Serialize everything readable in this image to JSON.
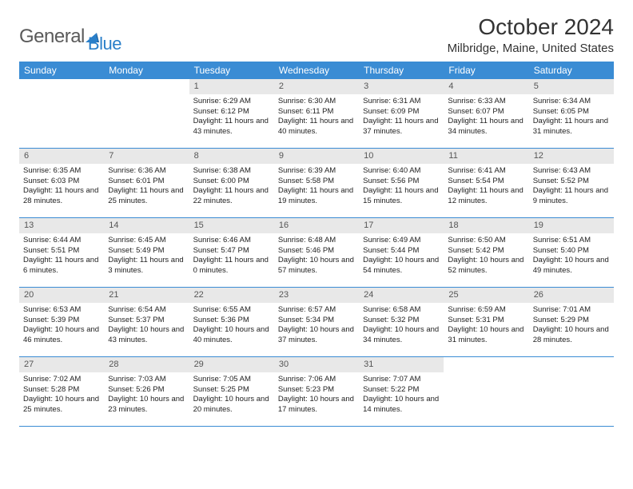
{
  "logo": {
    "text1": "General",
    "text2": "Blue"
  },
  "title": "October 2024",
  "location": "Milbridge, Maine, United States",
  "header_bg": "#3a8cd4",
  "daynum_bg": "#e8e8e8",
  "border_color": "#3a8cd4",
  "day_names": [
    "Sunday",
    "Monday",
    "Tuesday",
    "Wednesday",
    "Thursday",
    "Friday",
    "Saturday"
  ],
  "weeks": [
    [
      null,
      null,
      {
        "n": "1",
        "sr": "Sunrise: 6:29 AM",
        "ss": "Sunset: 6:12 PM",
        "dl": "Daylight: 11 hours and 43 minutes."
      },
      {
        "n": "2",
        "sr": "Sunrise: 6:30 AM",
        "ss": "Sunset: 6:11 PM",
        "dl": "Daylight: 11 hours and 40 minutes."
      },
      {
        "n": "3",
        "sr": "Sunrise: 6:31 AM",
        "ss": "Sunset: 6:09 PM",
        "dl": "Daylight: 11 hours and 37 minutes."
      },
      {
        "n": "4",
        "sr": "Sunrise: 6:33 AM",
        "ss": "Sunset: 6:07 PM",
        "dl": "Daylight: 11 hours and 34 minutes."
      },
      {
        "n": "5",
        "sr": "Sunrise: 6:34 AM",
        "ss": "Sunset: 6:05 PM",
        "dl": "Daylight: 11 hours and 31 minutes."
      }
    ],
    [
      {
        "n": "6",
        "sr": "Sunrise: 6:35 AM",
        "ss": "Sunset: 6:03 PM",
        "dl": "Daylight: 11 hours and 28 minutes."
      },
      {
        "n": "7",
        "sr": "Sunrise: 6:36 AM",
        "ss": "Sunset: 6:01 PM",
        "dl": "Daylight: 11 hours and 25 minutes."
      },
      {
        "n": "8",
        "sr": "Sunrise: 6:38 AM",
        "ss": "Sunset: 6:00 PM",
        "dl": "Daylight: 11 hours and 22 minutes."
      },
      {
        "n": "9",
        "sr": "Sunrise: 6:39 AM",
        "ss": "Sunset: 5:58 PM",
        "dl": "Daylight: 11 hours and 19 minutes."
      },
      {
        "n": "10",
        "sr": "Sunrise: 6:40 AM",
        "ss": "Sunset: 5:56 PM",
        "dl": "Daylight: 11 hours and 15 minutes."
      },
      {
        "n": "11",
        "sr": "Sunrise: 6:41 AM",
        "ss": "Sunset: 5:54 PM",
        "dl": "Daylight: 11 hours and 12 minutes."
      },
      {
        "n": "12",
        "sr": "Sunrise: 6:43 AM",
        "ss": "Sunset: 5:52 PM",
        "dl": "Daylight: 11 hours and 9 minutes."
      }
    ],
    [
      {
        "n": "13",
        "sr": "Sunrise: 6:44 AM",
        "ss": "Sunset: 5:51 PM",
        "dl": "Daylight: 11 hours and 6 minutes."
      },
      {
        "n": "14",
        "sr": "Sunrise: 6:45 AM",
        "ss": "Sunset: 5:49 PM",
        "dl": "Daylight: 11 hours and 3 minutes."
      },
      {
        "n": "15",
        "sr": "Sunrise: 6:46 AM",
        "ss": "Sunset: 5:47 PM",
        "dl": "Daylight: 11 hours and 0 minutes."
      },
      {
        "n": "16",
        "sr": "Sunrise: 6:48 AM",
        "ss": "Sunset: 5:46 PM",
        "dl": "Daylight: 10 hours and 57 minutes."
      },
      {
        "n": "17",
        "sr": "Sunrise: 6:49 AM",
        "ss": "Sunset: 5:44 PM",
        "dl": "Daylight: 10 hours and 54 minutes."
      },
      {
        "n": "18",
        "sr": "Sunrise: 6:50 AM",
        "ss": "Sunset: 5:42 PM",
        "dl": "Daylight: 10 hours and 52 minutes."
      },
      {
        "n": "19",
        "sr": "Sunrise: 6:51 AM",
        "ss": "Sunset: 5:40 PM",
        "dl": "Daylight: 10 hours and 49 minutes."
      }
    ],
    [
      {
        "n": "20",
        "sr": "Sunrise: 6:53 AM",
        "ss": "Sunset: 5:39 PM",
        "dl": "Daylight: 10 hours and 46 minutes."
      },
      {
        "n": "21",
        "sr": "Sunrise: 6:54 AM",
        "ss": "Sunset: 5:37 PM",
        "dl": "Daylight: 10 hours and 43 minutes."
      },
      {
        "n": "22",
        "sr": "Sunrise: 6:55 AM",
        "ss": "Sunset: 5:36 PM",
        "dl": "Daylight: 10 hours and 40 minutes."
      },
      {
        "n": "23",
        "sr": "Sunrise: 6:57 AM",
        "ss": "Sunset: 5:34 PM",
        "dl": "Daylight: 10 hours and 37 minutes."
      },
      {
        "n": "24",
        "sr": "Sunrise: 6:58 AM",
        "ss": "Sunset: 5:32 PM",
        "dl": "Daylight: 10 hours and 34 minutes."
      },
      {
        "n": "25",
        "sr": "Sunrise: 6:59 AM",
        "ss": "Sunset: 5:31 PM",
        "dl": "Daylight: 10 hours and 31 minutes."
      },
      {
        "n": "26",
        "sr": "Sunrise: 7:01 AM",
        "ss": "Sunset: 5:29 PM",
        "dl": "Daylight: 10 hours and 28 minutes."
      }
    ],
    [
      {
        "n": "27",
        "sr": "Sunrise: 7:02 AM",
        "ss": "Sunset: 5:28 PM",
        "dl": "Daylight: 10 hours and 25 minutes."
      },
      {
        "n": "28",
        "sr": "Sunrise: 7:03 AM",
        "ss": "Sunset: 5:26 PM",
        "dl": "Daylight: 10 hours and 23 minutes."
      },
      {
        "n": "29",
        "sr": "Sunrise: 7:05 AM",
        "ss": "Sunset: 5:25 PM",
        "dl": "Daylight: 10 hours and 20 minutes."
      },
      {
        "n": "30",
        "sr": "Sunrise: 7:06 AM",
        "ss": "Sunset: 5:23 PM",
        "dl": "Daylight: 10 hours and 17 minutes."
      },
      {
        "n": "31",
        "sr": "Sunrise: 7:07 AM",
        "ss": "Sunset: 5:22 PM",
        "dl": "Daylight: 10 hours and 14 minutes."
      },
      null,
      null
    ]
  ]
}
